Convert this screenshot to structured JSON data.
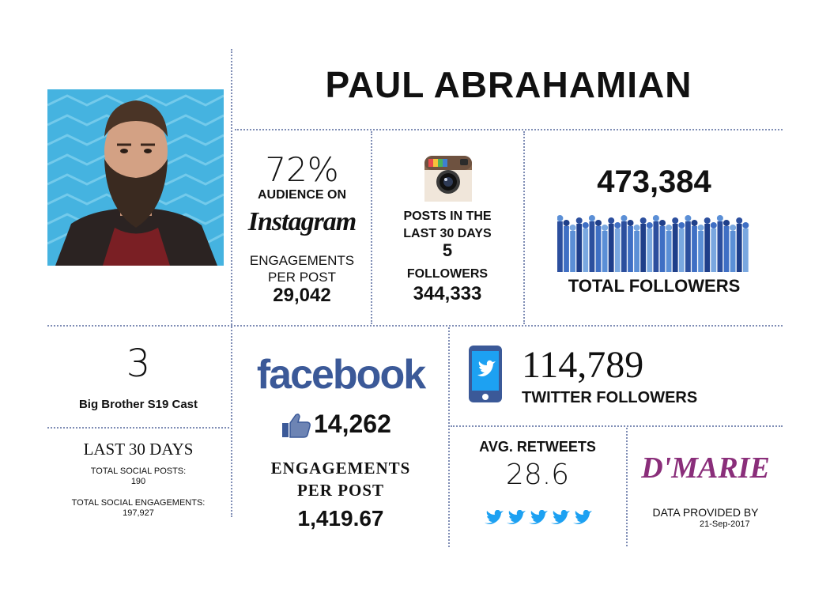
{
  "profile": {
    "name": "PAUL ABRAHAMIAN",
    "photo_icon": "portrait-photo"
  },
  "instagram": {
    "audience_pct": "72%",
    "audience_label": "AUDIENCE ON",
    "brand": "Instagram",
    "engagements_label_1": "ENGAGEMENTS",
    "engagements_label_2": "PER POST",
    "engagements_value": "29,042",
    "posts_label_1": "POSTS IN THE",
    "posts_label_2": "LAST 30 DAYS",
    "posts_value": "5",
    "followers_label": "FOLLOWERS",
    "followers_value": "344,333"
  },
  "totals": {
    "followers_value": "473,384",
    "followers_label": "TOTAL FOLLOWERS"
  },
  "cast": {
    "number": "3",
    "label": "Big Brother S19 Cast"
  },
  "last30": {
    "title": "LAST 30 DAYS",
    "posts_label": "TOTAL SOCIAL POSTS:",
    "posts_value": "190",
    "engagements_label": "TOTAL SOCIAL ENGAGEMENTS:",
    "engagements_value": "197,927"
  },
  "facebook": {
    "brand": "facebook",
    "likes_value": "14,262",
    "engagements_label_1": "ENGAGEMENTS",
    "engagements_label_2": "PER POST",
    "engagements_value": "1,419.67"
  },
  "twitter": {
    "followers_value": "114,789",
    "followers_label": "TWITTER FOLLOWERS",
    "retweets_label": "AVG. RETWEETS",
    "retweets_value": "28.6"
  },
  "footer": {
    "brand": "D'MARIE",
    "provided_by": "DATA PROVIDED BY",
    "date": "21-Sep-2017"
  },
  "colors": {
    "divider": "#7f8db5",
    "facebook": "#3b5998",
    "twitter": "#1da1f2",
    "dmarie": "#8a2e7a",
    "photo_bg": "#45b3e0"
  }
}
